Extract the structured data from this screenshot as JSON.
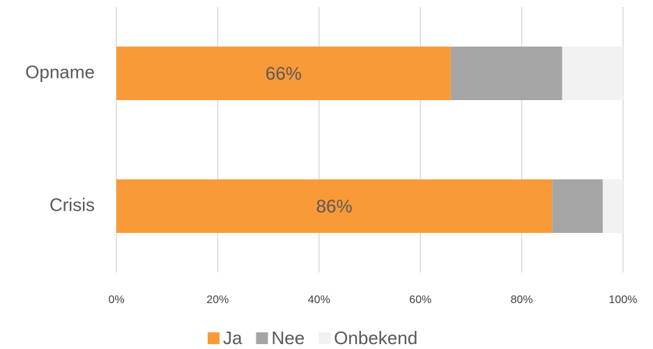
{
  "chart_data": {
    "type": "stacked-barh",
    "categories": [
      "Opname",
      "Crisis"
    ],
    "series": [
      {
        "name": "Ja",
        "color": "#f99a38",
        "values": [
          66,
          86
        ],
        "value_labels": [
          "66%",
          "86%"
        ]
      },
      {
        "name": "Nee",
        "color": "#a5a5a5",
        "values": [
          22,
          10
        ]
      },
      {
        "name": "Onbekend",
        "color": "#f2f2f2",
        "values": [
          12,
          4
        ]
      }
    ],
    "xlim": [
      0,
      100
    ],
    "xticks": [
      {
        "value": 0,
        "label": "0%"
      },
      {
        "value": 20,
        "label": "20%"
      },
      {
        "value": 40,
        "label": "40%"
      },
      {
        "value": 60,
        "label": "60%"
      },
      {
        "value": 80,
        "label": "80%"
      },
      {
        "value": 100,
        "label": "100%"
      }
    ],
    "grid": true,
    "legend": "bottom"
  }
}
